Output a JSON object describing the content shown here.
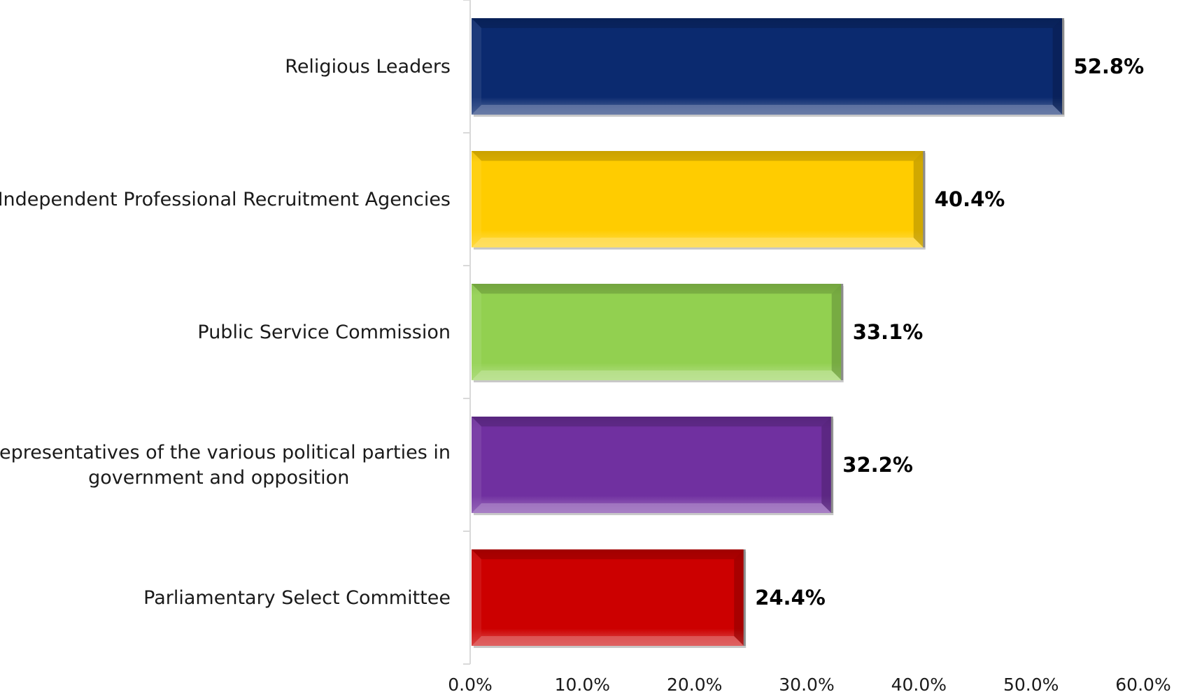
{
  "chart_data": {
    "type": "bar",
    "orientation": "horizontal",
    "categories": [
      "Religious Leaders",
      "Independent Professional Recruitment Agencies",
      "Public Service Commission",
      "Representatives of the various political parties in government and opposition",
      "Parliamentary Select Committee"
    ],
    "category_lines": [
      [
        "Religious Leaders"
      ],
      [
        "Independent Professional Recruitment Agencies"
      ],
      [
        "Public Service Commission"
      ],
      [
        "Representatives of the various political parties in",
        "government and opposition"
      ],
      [
        "Parliamentary Select Committee"
      ]
    ],
    "values": [
      52.8,
      40.4,
      33.1,
      32.2,
      24.4
    ],
    "value_labels": [
      "52.8%",
      "40.4%",
      "33.1%",
      "32.2%",
      "24.4%"
    ],
    "colors": [
      "#0b2a6f",
      "#ffcc00",
      "#92d050",
      "#7030a0",
      "#cc0000"
    ],
    "xlim": [
      0,
      60
    ],
    "xticks": [
      0,
      10,
      20,
      30,
      40,
      50,
      60
    ],
    "xtick_labels": [
      "0.0%",
      "10.0%",
      "20.0%",
      "30.0%",
      "40.0%",
      "50.0%",
      "60.0%"
    ],
    "grid": false,
    "legend": "none",
    "title": "",
    "xlabel": "",
    "ylabel": ""
  }
}
